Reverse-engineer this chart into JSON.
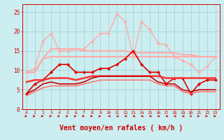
{
  "x": [
    0,
    1,
    2,
    3,
    4,
    5,
    6,
    7,
    8,
    9,
    10,
    11,
    12,
    13,
    14,
    15,
    16,
    17,
    18,
    19,
    20,
    21,
    22,
    23
  ],
  "background_color": "#cceef0",
  "grid_color": "#aad8da",
  "xlabel": "Vent moyen/en rafales ( km/h )",
  "xlabel_color": "#cc0000",
  "xlabel_fontsize": 7,
  "ylim": [
    0,
    27
  ],
  "yticks": [
    0,
    5,
    10,
    15,
    20,
    25
  ],
  "lines": [
    {
      "y": [
        9.5,
        9.5,
        13.0,
        15.5,
        15.5,
        15.5,
        15.5,
        15.0,
        15.0,
        15.0,
        15.0,
        15.0,
        15.0,
        14.5,
        14.5,
        14.5,
        14.5,
        14.5,
        14.5,
        14.0,
        14.0,
        13.5,
        13.5,
        13.5
      ],
      "color": "#ffaaaa",
      "lw": 1.5,
      "marker": null,
      "ls": "-"
    },
    {
      "y": [
        9.5,
        10.5,
        17.5,
        19.5,
        15.0,
        15.0,
        15.5,
        15.5,
        17.5,
        19.5,
        19.5,
        24.5,
        22.5,
        13.5,
        22.5,
        20.5,
        17.0,
        16.5,
        13.5,
        12.5,
        11.5,
        9.5,
        11.0,
        13.5
      ],
      "color": "#ffaaaa",
      "lw": 1.0,
      "marker": "D",
      "ms": 2.0,
      "ls": "-"
    },
    {
      "y": [
        9.5,
        9.5,
        13.0,
        13.5,
        13.5,
        13.5,
        13.5,
        13.5,
        13.5,
        13.5,
        13.5,
        13.5,
        13.5,
        13.5,
        13.5,
        13.5,
        13.5,
        13.5,
        13.5,
        13.5,
        13.5,
        13.5,
        13.5,
        13.5
      ],
      "color": "#ffaaaa",
      "lw": 1.5,
      "marker": null,
      "ls": "-"
    },
    {
      "y": [
        4.0,
        6.5,
        7.5,
        9.5,
        11.5,
        11.5,
        9.5,
        9.5,
        9.5,
        10.5,
        10.5,
        11.5,
        13.0,
        15.0,
        11.5,
        9.5,
        9.5,
        6.5,
        8.0,
        8.0,
        4.0,
        6.5,
        7.5,
        7.5
      ],
      "color": "#dd0000",
      "lw": 1.2,
      "marker": "D",
      "ms": 2.0,
      "ls": "-"
    },
    {
      "y": [
        7.0,
        7.5,
        7.5,
        8.0,
        8.0,
        8.0,
        7.5,
        8.0,
        8.5,
        8.5,
        8.5,
        8.5,
        8.5,
        8.5,
        8.5,
        8.5,
        8.5,
        8.0,
        8.0,
        8.0,
        8.0,
        8.0,
        8.0,
        8.0
      ],
      "color": "#ff3333",
      "lw": 1.8,
      "marker": null,
      "ls": "-"
    },
    {
      "y": [
        4.0,
        5.0,
        6.5,
        7.0,
        6.5,
        6.5,
        6.5,
        7.0,
        8.0,
        8.5,
        8.5,
        8.5,
        8.5,
        8.5,
        8.5,
        8.5,
        7.0,
        6.5,
        6.5,
        5.0,
        4.5,
        5.0,
        5.0,
        5.0
      ],
      "color": "#cc0000",
      "lw": 1.2,
      "marker": null,
      "ls": "-"
    },
    {
      "y": [
        3.5,
        4.5,
        5.5,
        6.0,
        6.0,
        6.0,
        6.0,
        6.5,
        7.0,
        7.5,
        7.5,
        7.5,
        7.5,
        7.5,
        7.5,
        7.5,
        6.5,
        6.0,
        6.0,
        4.5,
        4.0,
        4.5,
        4.5,
        4.5
      ],
      "color": "#ff6666",
      "lw": 1.0,
      "marker": null,
      "ls": "-"
    }
  ],
  "arrows": {
    "directions": [
      1,
      1,
      1,
      1,
      1,
      1,
      1,
      1,
      1,
      1,
      -1,
      -1,
      -1,
      -1,
      -1,
      -1,
      -1,
      -1,
      -1,
      -1,
      0,
      1,
      1,
      1
    ],
    "color": "#cc0000"
  }
}
